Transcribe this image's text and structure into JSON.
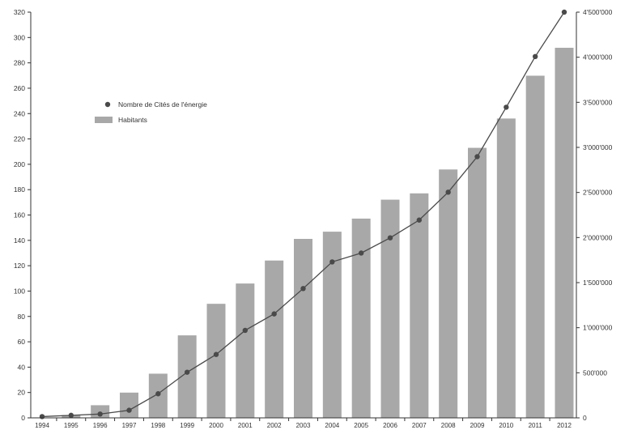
{
  "chart_data": {
    "type": "bar",
    "categories": [
      "1994",
      "1995",
      "1996",
      "1997",
      "1998",
      "1999",
      "2000",
      "2001",
      "2002",
      "2003",
      "2004",
      "2005",
      "2006",
      "2007",
      "2008",
      "2009",
      "2010",
      "2011",
      "2012"
    ],
    "series": [
      {
        "name": "Habitants",
        "type": "bar",
        "axis": "right",
        "color": "#a8a8a8",
        "values": [
          5000,
          30000,
          140000,
          280000,
          490000,
          915000,
          1265000,
          1490000,
          1745000,
          1985000,
          2065000,
          2210000,
          2420000,
          2490000,
          2755000,
          2995000,
          3320000,
          3795000,
          4105000
        ]
      },
      {
        "name": "Nombre de Cités de l'énergie",
        "type": "line",
        "axis": "left",
        "color": "#4a4a4a",
        "marker": "circle",
        "values": [
          1,
          2,
          3,
          6,
          19,
          36,
          50,
          69,
          82,
          102,
          123,
          130,
          142,
          156,
          178,
          206,
          245,
          285,
          320
        ]
      }
    ],
    "left_axis": {
      "ylim": [
        0,
        320
      ],
      "tick_labels": [
        "0",
        "20",
        "40",
        "60",
        "80",
        "100",
        "120",
        "140",
        "160",
        "180",
        "200",
        "220",
        "240",
        "260",
        "280",
        "300",
        "320"
      ]
    },
    "right_axis": {
      "ylim": [
        0,
        4500000
      ],
      "tick_labels": [
        "0",
        "500'000",
        "1'000'000",
        "1'500'000",
        "2'000'000",
        "2'500'000",
        "3'000'000",
        "3'500'000",
        "4'000'000",
        "4'500'000"
      ]
    },
    "legend": "top-left",
    "grid": false
  }
}
